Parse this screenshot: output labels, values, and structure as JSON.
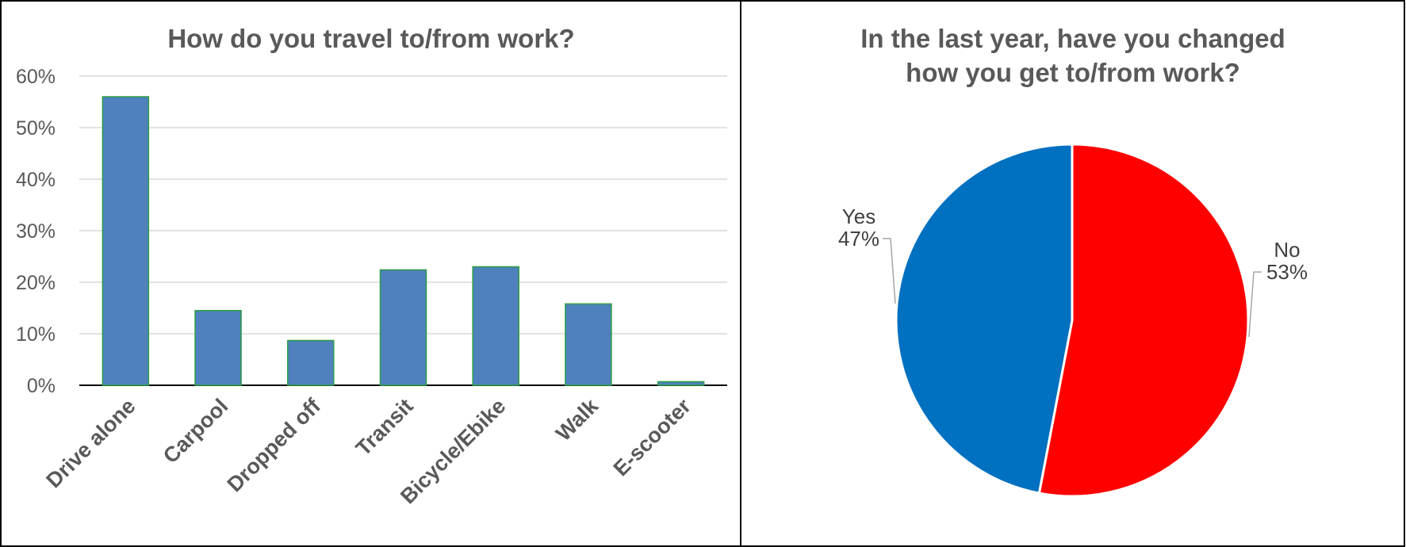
{
  "chart_data": [
    {
      "type": "bar",
      "title": "How do you travel to/from work?",
      "categories": [
        "Drive alone",
        "Carpool",
        "Dropped off",
        "Transit",
        "Bicycle/Ebike",
        "Walk",
        "E-scooter"
      ],
      "values": [
        56,
        14.5,
        8.7,
        22.4,
        23,
        15.8,
        0.7
      ],
      "ylim": [
        0,
        60
      ],
      "yticks": [
        "0%",
        "10%",
        "20%",
        "30%",
        "40%",
        "50%",
        "60%"
      ],
      "grid": true,
      "colors": {
        "bar": "#4F81BD",
        "bar_border": "#2E9E45",
        "grid": "#D9D9D9",
        "axis": "#000000"
      }
    },
    {
      "type": "pie",
      "title_lines": [
        "In the last year, have you changed",
        "how you get to/from work?"
      ],
      "slices": [
        {
          "label": "No",
          "value": 53,
          "value_label": "53%",
          "color": "#FF0000"
        },
        {
          "label": "Yes",
          "value": 47,
          "value_label": "47%",
          "color": "#0070C0"
        }
      ]
    }
  ]
}
